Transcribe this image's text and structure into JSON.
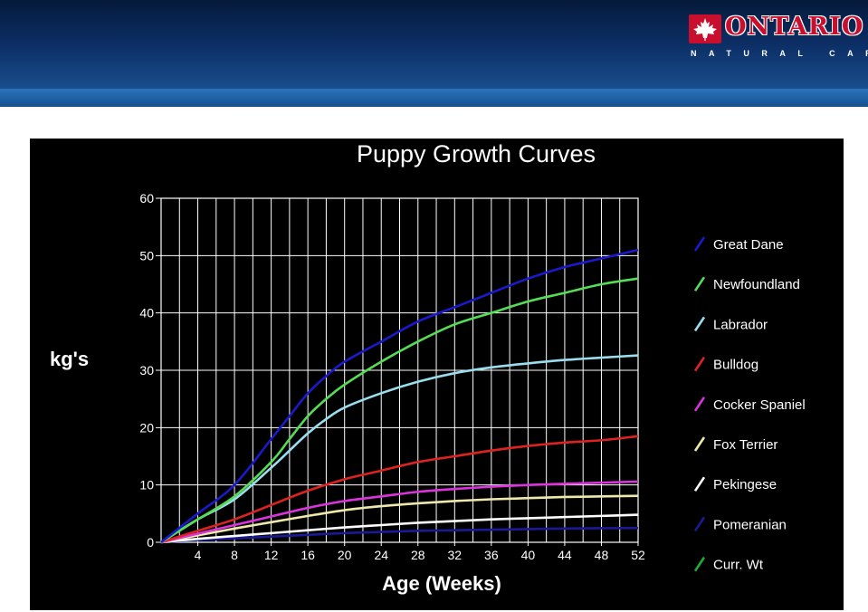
{
  "brand": {
    "name": "ONTARIO",
    "subtitle": "NATURAL CARE",
    "colors": {
      "header_dark": "#0c2f66",
      "header_light": "#2b72b8",
      "brand_red": "#c8102e"
    },
    "icon": "maple-leaf-icon"
  },
  "chart_data": {
    "type": "line",
    "title": "Puppy Growth Curves",
    "xlabel": "Age (Weeks)",
    "ylabel": "kg's",
    "xlim": [
      0,
      52
    ],
    "ylim": [
      0,
      60
    ],
    "x_ticks": [
      4,
      8,
      12,
      16,
      20,
      24,
      28,
      32,
      36,
      40,
      44,
      48,
      52
    ],
    "y_ticks": [
      0,
      10,
      20,
      30,
      40,
      50,
      60
    ],
    "x_grid_step": 2,
    "grid": true,
    "legend": "right",
    "background": "#000000",
    "series": [
      {
        "name": "Great Dane",
        "color": "#1a1acc",
        "points": [
          [
            0,
            0
          ],
          [
            4,
            5
          ],
          [
            8,
            10
          ],
          [
            12,
            18
          ],
          [
            14,
            22
          ],
          [
            16,
            26
          ],
          [
            18,
            29
          ],
          [
            20,
            31.5
          ],
          [
            24,
            35
          ],
          [
            28,
            38.5
          ],
          [
            32,
            41
          ],
          [
            36,
            43.5
          ],
          [
            40,
            46
          ],
          [
            44,
            48
          ],
          [
            48,
            49.5
          ],
          [
            52,
            51
          ]
        ]
      },
      {
        "name": "Newfoundland",
        "color": "#55dd55",
        "points": [
          [
            0,
            0
          ],
          [
            4,
            4
          ],
          [
            8,
            8
          ],
          [
            12,
            14
          ],
          [
            14,
            18
          ],
          [
            16,
            22
          ],
          [
            18,
            25
          ],
          [
            20,
            27.5
          ],
          [
            24,
            31.5
          ],
          [
            28,
            35
          ],
          [
            32,
            38
          ],
          [
            36,
            40
          ],
          [
            40,
            42
          ],
          [
            44,
            43.5
          ],
          [
            48,
            45
          ],
          [
            52,
            46
          ]
        ]
      },
      {
        "name": "Labrador",
        "color": "#99ddee",
        "points": [
          [
            0,
            0
          ],
          [
            4,
            4
          ],
          [
            8,
            7.5
          ],
          [
            12,
            13
          ],
          [
            14,
            16
          ],
          [
            16,
            19
          ],
          [
            18,
            21.5
          ],
          [
            20,
            23.5
          ],
          [
            24,
            26
          ],
          [
            28,
            28
          ],
          [
            32,
            29.5
          ],
          [
            36,
            30.5
          ],
          [
            40,
            31.2
          ],
          [
            44,
            31.8
          ],
          [
            48,
            32.2
          ],
          [
            52,
            32.6
          ]
        ]
      },
      {
        "name": "Bulldog",
        "color": "#dd2222",
        "points": [
          [
            0,
            0
          ],
          [
            4,
            2
          ],
          [
            8,
            4
          ],
          [
            12,
            6.5
          ],
          [
            16,
            9
          ],
          [
            20,
            11
          ],
          [
            24,
            12.5
          ],
          [
            28,
            14
          ],
          [
            32,
            15
          ],
          [
            36,
            16
          ],
          [
            40,
            16.8
          ],
          [
            44,
            17.4
          ],
          [
            48,
            17.8
          ],
          [
            52,
            18.5
          ]
        ]
      },
      {
        "name": "Cocker Spaniel",
        "color": "#dd33dd",
        "points": [
          [
            0,
            0
          ],
          [
            4,
            1.5
          ],
          [
            8,
            3
          ],
          [
            12,
            4.5
          ],
          [
            16,
            6
          ],
          [
            20,
            7.2
          ],
          [
            24,
            8
          ],
          [
            28,
            8.8
          ],
          [
            32,
            9.3
          ],
          [
            36,
            9.7
          ],
          [
            40,
            10
          ],
          [
            44,
            10.2
          ],
          [
            48,
            10.4
          ],
          [
            52,
            10.6
          ]
        ]
      },
      {
        "name": "Fox Terrier",
        "color": "#eee8aa",
        "points": [
          [
            0,
            0
          ],
          [
            4,
            1.2
          ],
          [
            8,
            2.4
          ],
          [
            12,
            3.5
          ],
          [
            16,
            4.6
          ],
          [
            20,
            5.6
          ],
          [
            24,
            6.3
          ],
          [
            28,
            6.8
          ],
          [
            32,
            7.2
          ],
          [
            36,
            7.5
          ],
          [
            40,
            7.7
          ],
          [
            44,
            7.9
          ],
          [
            48,
            8
          ],
          [
            52,
            8.1
          ]
        ]
      },
      {
        "name": "Pekingese",
        "color": "#ffffff",
        "points": [
          [
            0,
            0
          ],
          [
            4,
            0.6
          ],
          [
            8,
            1.1
          ],
          [
            12,
            1.6
          ],
          [
            16,
            2.1
          ],
          [
            20,
            2.6
          ],
          [
            24,
            3
          ],
          [
            28,
            3.4
          ],
          [
            32,
            3.7
          ],
          [
            36,
            4
          ],
          [
            40,
            4.2
          ],
          [
            44,
            4.4
          ],
          [
            48,
            4.6
          ],
          [
            52,
            4.8
          ]
        ]
      },
      {
        "name": "Pomeranian",
        "color": "#1a1a99",
        "points": [
          [
            0,
            0
          ],
          [
            4,
            0.4
          ],
          [
            8,
            0.7
          ],
          [
            12,
            1
          ],
          [
            16,
            1.3
          ],
          [
            20,
            1.6
          ],
          [
            24,
            1.8
          ],
          [
            28,
            2
          ],
          [
            32,
            2.1
          ],
          [
            36,
            2.2
          ],
          [
            40,
            2.3
          ],
          [
            44,
            2.4
          ],
          [
            48,
            2.45
          ],
          [
            52,
            2.5
          ]
        ]
      },
      {
        "name": "Curr. Wt",
        "color": "#22aa33",
        "points": []
      }
    ]
  }
}
